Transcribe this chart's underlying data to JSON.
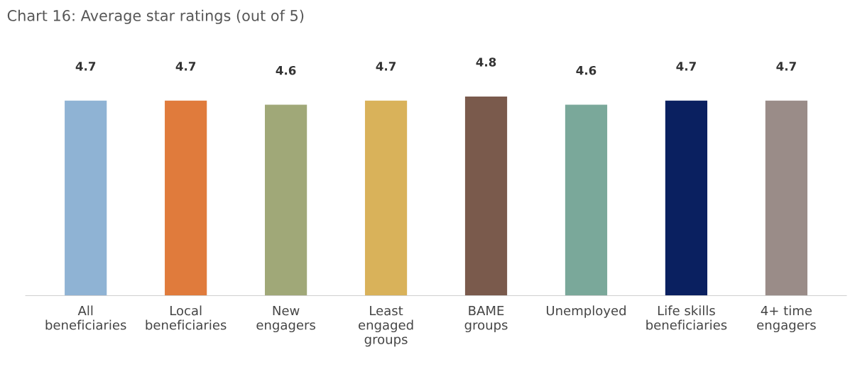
{
  "chart_data": {
    "type": "bar",
    "title": "Chart 16: Average star ratings (out of 5)",
    "categories": [
      "All\nbeneficiaries",
      "Local\nbeneficiaries",
      "New\nengagers",
      "Least\nengaged\ngroups",
      "BAME\ngroups",
      "Unemployed",
      "Life skills\nbeneficiaries",
      "4+ time\nengagers"
    ],
    "values": [
      4.7,
      4.7,
      4.6,
      4.7,
      4.8,
      4.6,
      4.7,
      4.7
    ],
    "colors": [
      "#8fb3d4",
      "#e07b3c",
      "#a0a878",
      "#d9b25a",
      "#7a5a4c",
      "#7aa89a",
      "#0a2060",
      "#9a8c88"
    ],
    "data_labels": true,
    "grid": false,
    "legend": false
  }
}
